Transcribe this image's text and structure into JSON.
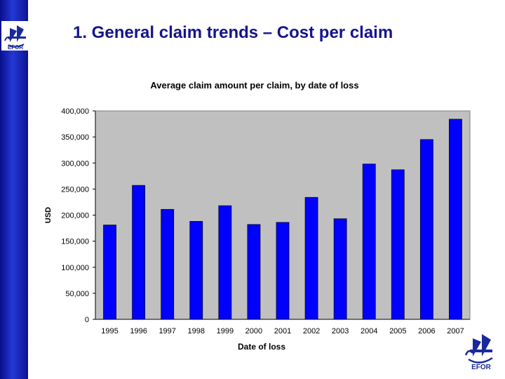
{
  "slide": {
    "title": "1. General claim trends – Cost per claim",
    "logo_text": "EFOR"
  },
  "colors": {
    "sidebar": "#1428c8",
    "title": "#14148c",
    "bar": "#0000ff",
    "plot_background": "#c0c0c0"
  },
  "chart_data": {
    "type": "bar",
    "title": "Average claim amount per claim, by date of loss",
    "xlabel": "Date of loss",
    "ylabel": "USD",
    "categories": [
      "1995",
      "1996",
      "1997",
      "1998",
      "1999",
      "2000",
      "2001",
      "2002",
      "2003",
      "2004",
      "2005",
      "2006",
      "2007"
    ],
    "values": [
      181000,
      257000,
      211000,
      188000,
      218000,
      182000,
      186000,
      234000,
      193000,
      298000,
      287000,
      345000,
      384000
    ],
    "ylim": [
      0,
      400000
    ],
    "yticks": [
      0,
      50000,
      100000,
      150000,
      200000,
      250000,
      300000,
      350000,
      400000
    ],
    "ytick_labels": [
      "0",
      "50,000",
      "100,000",
      "150,000",
      "200,000",
      "250,000",
      "300,000",
      "350,000",
      "400,000"
    ],
    "grid": false,
    "legend": "none"
  }
}
